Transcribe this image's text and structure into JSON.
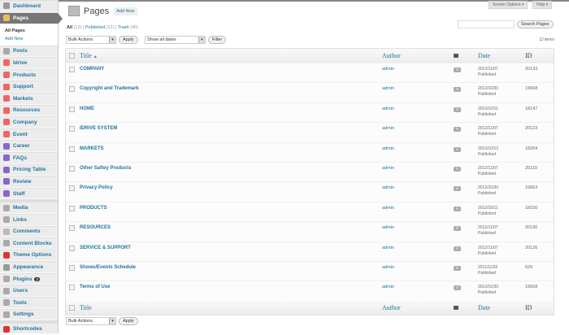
{
  "sidebar": {
    "items": [
      {
        "label": "Dashboard",
        "icon": "dashboard-icon",
        "color": "#999"
      },
      {
        "label": "Pages",
        "icon": "pages-icon",
        "color": "#e8c060",
        "selected": true
      },
      {
        "label": "Posts",
        "icon": "posts-icon",
        "color": "#aaa"
      },
      {
        "label": "Idrive",
        "icon": "custom-post-icon",
        "color": "#e66"
      },
      {
        "label": "Products",
        "icon": "custom-post-icon",
        "color": "#e66"
      },
      {
        "label": "Support",
        "icon": "custom-post-icon",
        "color": "#e66"
      },
      {
        "label": "Markets",
        "icon": "custom-post-icon",
        "color": "#e66"
      },
      {
        "label": "Resources",
        "icon": "custom-post-icon",
        "color": "#e66"
      },
      {
        "label": "Company",
        "icon": "custom-post-icon",
        "color": "#e66"
      },
      {
        "label": "Event",
        "icon": "custom-post-icon",
        "color": "#e66"
      },
      {
        "label": "Career",
        "icon": "blocks-icon",
        "color": "#86c"
      },
      {
        "label": "FAQs",
        "icon": "blocks-icon",
        "color": "#86c"
      },
      {
        "label": "Pricing Table",
        "icon": "blocks-icon",
        "color": "#86c"
      },
      {
        "label": "Review",
        "icon": "blocks-icon",
        "color": "#86c"
      },
      {
        "label": "Staff",
        "icon": "blocks-icon",
        "color": "#86c"
      },
      {
        "label": "Media",
        "icon": "media-icon",
        "color": "#aaa",
        "sep": true
      },
      {
        "label": "Links",
        "icon": "links-icon",
        "color": "#aaa"
      },
      {
        "label": "Comments",
        "icon": "comments-icon",
        "color": "#bbb"
      },
      {
        "label": "Content Blocks",
        "icon": "content-blocks-icon",
        "color": "#aaa"
      },
      {
        "label": "Theme Options",
        "icon": "theme-options-icon",
        "color": "#d33"
      },
      {
        "label": "Appearance",
        "icon": "appearance-icon",
        "color": "#999"
      },
      {
        "label": "Plugins",
        "icon": "plugins-icon",
        "color": "#aaa",
        "badge": "2"
      },
      {
        "label": "Users",
        "icon": "users-icon",
        "color": "#aaa"
      },
      {
        "label": "Tools",
        "icon": "tools-icon",
        "color": "#aaa"
      },
      {
        "label": "Settings",
        "icon": "settings-icon",
        "color": "#aaa"
      },
      {
        "label": "Shortcodes",
        "icon": "shortcodes-icon",
        "color": "#d33",
        "sep": true
      }
    ],
    "submenu": [
      "All Pages",
      "Add New"
    ]
  },
  "topbar": {
    "screen_options": "Screen Options ▾",
    "help": "Help ▾"
  },
  "header": {
    "title": "Pages",
    "add_new": "Add New"
  },
  "views": {
    "all": "All",
    "all_count": "(12)",
    "published": "Published",
    "published_count": "(12)",
    "trash": "Trash",
    "trash_count": "(40)"
  },
  "filters": {
    "bulk_actions": "Bulk Actions",
    "apply": "Apply",
    "dates": "Show all dates",
    "filter": "Filter",
    "search_button": "Search Pages",
    "search_value": "",
    "items_count": "12 items"
  },
  "columns": {
    "title": "Title",
    "sort": "▲",
    "author": "Author",
    "date": "Date",
    "id": "ID"
  },
  "rows": [
    {
      "title": "COMPANY",
      "author": "admin",
      "comments": "0",
      "date": "2012/11/07",
      "status": "Published",
      "id": "20133"
    },
    {
      "title": "Copyright and Trademark",
      "author": "admin",
      "comments": "0",
      "date": "2012/10/30",
      "status": "Published",
      "id": "19668"
    },
    {
      "title": "HOME",
      "author": "admin",
      "comments": "0",
      "date": "2012/10/11",
      "status": "Published",
      "id": "18147"
    },
    {
      "title": "IDRIVE SYSTEM",
      "author": "admin",
      "comments": "0",
      "date": "2012/11/07",
      "status": "Published",
      "id": "20123"
    },
    {
      "title": "MARKETS",
      "author": "admin",
      "comments": "0",
      "date": "2012/10/12",
      "status": "Published",
      "id": "18264"
    },
    {
      "title": "Other Saftey Products",
      "author": "admin",
      "comments": "0",
      "date": "2012/11/07",
      "status": "Published",
      "id": "20119"
    },
    {
      "title": "Privacy Policy",
      "author": "admin",
      "comments": "0",
      "date": "2012/10/30",
      "status": "Published",
      "id": "19663"
    },
    {
      "title": "PRODUCTS",
      "author": "admin",
      "comments": "0",
      "date": "2012/10/11",
      "status": "Published",
      "id": "18150"
    },
    {
      "title": "RESOURCES",
      "author": "admin",
      "comments": "0",
      "date": "2012/11/07",
      "status": "Published",
      "id": "20130"
    },
    {
      "title": "SERVICE & SUPPORT",
      "author": "admin",
      "comments": "0",
      "date": "2012/11/07",
      "status": "Published",
      "id": "20126"
    },
    {
      "title": "Shows/Events Schedule",
      "author": "admin",
      "comments": "0",
      "date": "2011/11/02",
      "status": "Published",
      "id": "629"
    },
    {
      "title": "Terms of Use",
      "author": "admin",
      "comments": "0",
      "date": "2012/10/30",
      "status": "Published",
      "id": "19658"
    }
  ]
}
